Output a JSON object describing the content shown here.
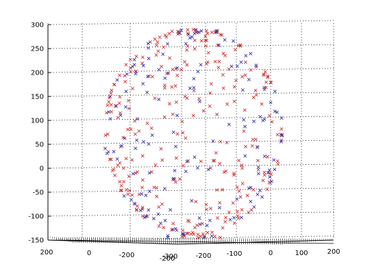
{
  "chart_data": {
    "type": "scatter",
    "view": "3d",
    "marker": "x",
    "title": "",
    "grid": true,
    "colors": {
      "series_a": "#cc3333",
      "series_b": "#3333aa",
      "axis": "#000000",
      "grid": "#000000",
      "floor": "#000000"
    },
    "z_axis": {
      "range": [
        -150,
        300
      ],
      "ticks": [
        "300",
        "250",
        "200",
        "150",
        "100",
        "50",
        "0",
        "-50",
        "-100",
        "-150"
      ]
    },
    "x_axis": {
      "range": [
        -300,
        200
      ],
      "ticks": [
        "200",
        "0",
        "-200",
        "-300"
      ]
    },
    "y_axis": {
      "range": [
        -200,
        200
      ],
      "ticks": [
        "-200",
        "-100",
        "0",
        "100",
        "200"
      ]
    },
    "description_of_data": "",
    "series": [
      {
        "color_key": "series_a",
        "count": 300
      },
      {
        "color_key": "series_b",
        "count": 150
      }
    ],
    "sphere": {
      "center_z": 70,
      "radius_z": 215,
      "dense_poles": true
    }
  }
}
